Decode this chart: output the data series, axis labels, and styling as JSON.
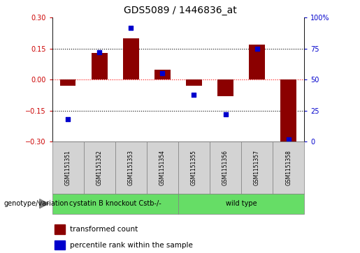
{
  "title": "GDS5089 / 1446836_at",
  "samples": [
    "GSM1151351",
    "GSM1151352",
    "GSM1151353",
    "GSM1151354",
    "GSM1151355",
    "GSM1151356",
    "GSM1151357",
    "GSM1151358"
  ],
  "transformed_count": [
    -0.03,
    0.13,
    0.2,
    0.05,
    -0.03,
    -0.08,
    0.17,
    -0.3
  ],
  "percentile_rank": [
    18,
    72,
    92,
    55,
    38,
    22,
    75,
    2
  ],
  "ylim_left": [
    -0.3,
    0.3
  ],
  "ylim_right": [
    0,
    100
  ],
  "yticks_left": [
    -0.3,
    -0.15,
    0,
    0.15,
    0.3
  ],
  "yticks_right": [
    0,
    25,
    50,
    75,
    100
  ],
  "hlines": [
    -0.15,
    0.0,
    0.15
  ],
  "hline_colors": [
    "black",
    "red",
    "black"
  ],
  "hline_styles": [
    "dotted",
    "dotted",
    "dotted"
  ],
  "group1_label": "cystatin B knockout Cstb-/-",
  "group2_label": "wild type",
  "group1_count": 4,
  "group2_count": 4,
  "group_color": "#66dd66",
  "sample_bg_color": "#D3D3D3",
  "bar_color": "#8B0000",
  "point_color": "#0000CC",
  "bar_width": 0.5,
  "legend_label_bar": "transformed count",
  "legend_label_point": "percentile rank within the sample",
  "genotype_label": "genotype/variation",
  "plot_bg": "#ffffff",
  "tick_label_color_left": "#CC0000",
  "tick_label_color_right": "#0000CC",
  "title_fontsize": 10,
  "axis_fontsize": 7,
  "legend_fontsize": 7.5,
  "sample_fontsize": 5.5,
  "group_fontsize": 7
}
